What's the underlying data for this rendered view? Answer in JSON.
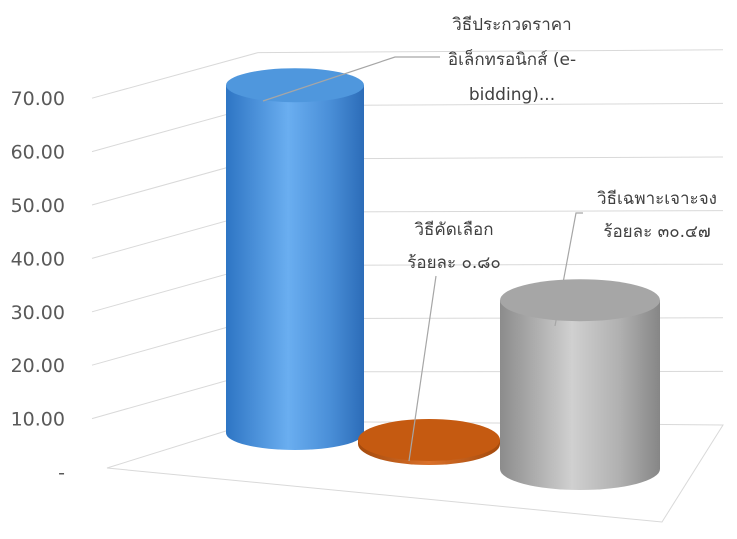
{
  "chart_data": {
    "type": "bar",
    "shape": "cylinder",
    "three_d": true,
    "categories": [
      "วิธีประกวดราคาอิเล็กทรอนิกส์ (e-bidding)...",
      "วิธีคัดเลือก",
      "วิธีเฉพาะเจาะจง"
    ],
    "series": [
      {
        "values": [
          68.73,
          0.8,
          30.47
        ]
      }
    ],
    "ylim": [
      0,
      70
    ],
    "y_ticks": [
      "-",
      "10.00",
      "20.00",
      "30.00",
      "40.00",
      "50.00",
      "60.00",
      "70.00"
    ],
    "grid": true,
    "legend": "none",
    "colors": [
      "#4f97dd",
      "#c55a11",
      "#a6a6a6"
    ],
    "data_labels": [
      [
        "วิธีประกวดราคา",
        "อิเล็กทรอนิกส์ (e-",
        "bidding)..."
      ],
      [
        "วิธีคัดเลือก",
        "ร้อยละ ๐.๘๐"
      ],
      [
        "วิธีเฉพาะเจาะจง",
        "ร้อยละ  ๓๐.๔๗"
      ]
    ]
  }
}
